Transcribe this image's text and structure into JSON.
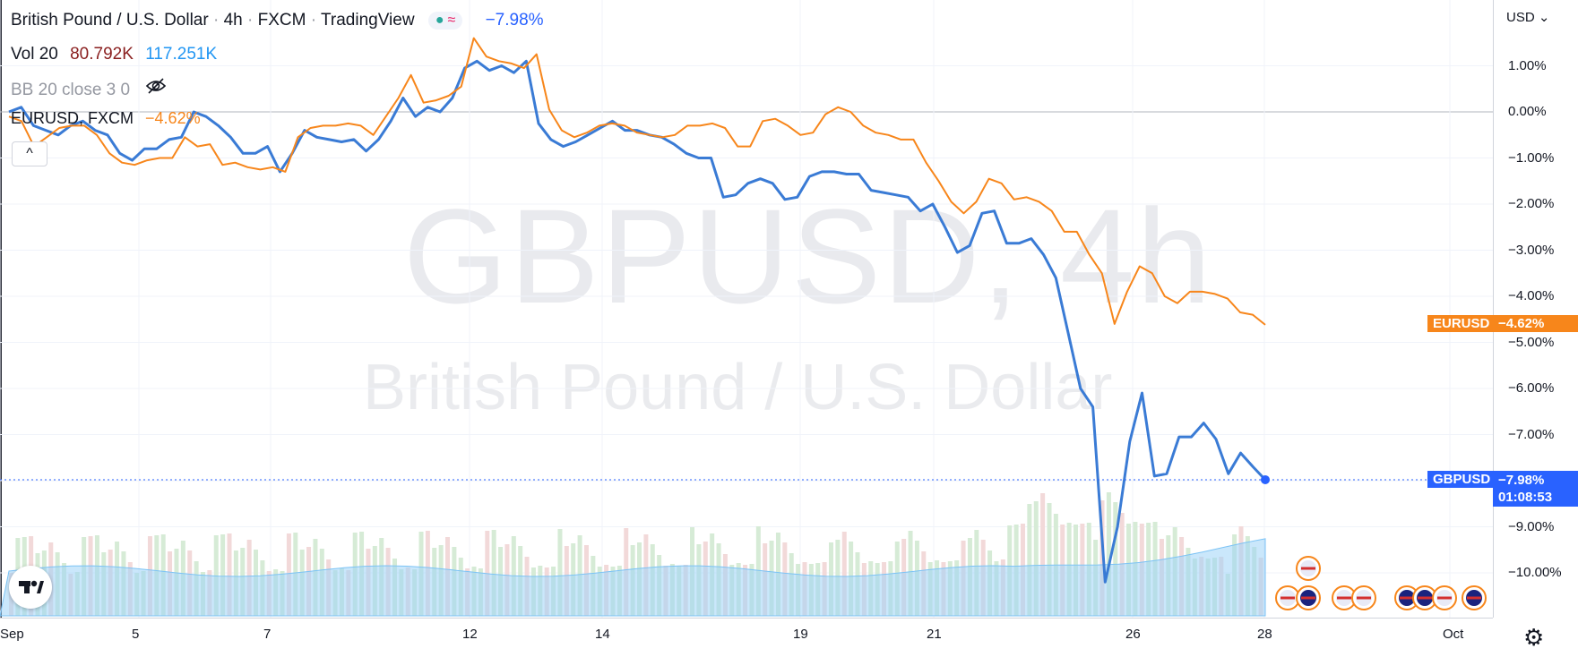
{
  "legend": {
    "title": "British Pound / U.S. Dollar",
    "timeframe": "4h",
    "exchange": "FXCM",
    "platform": "TradingView",
    "change": "−7.98%",
    "vol_label": "Vol 20",
    "vol_value1": "80.792K",
    "vol_value2": "117.251K",
    "bb_label": "BB 20 close 3 0",
    "compare_label": "EURUSD, FXCM",
    "compare_change": "−4.62%",
    "collapse_icon": "^"
  },
  "watermark": {
    "symbol": "GBPUSD, 4h",
    "description": "British Pound / U.S. Dollar"
  },
  "price_scale": {
    "currency": "USD",
    "eur_tag": "EURUSD",
    "eur_value": "−4.62%",
    "gbp_tag": "GBPUSD",
    "gbp_value": "−7.98%",
    "countdown": "01:08:53"
  },
  "colors": {
    "gbp": "#3a7bd5",
    "eur": "#f7861b",
    "volume_up": "#d6ebd6",
    "volume_down": "#f2d9d9",
    "volume_ma": "#9fd3f7"
  },
  "chart_data": {
    "type": "line",
    "x_ticks": [
      "Sep",
      "5",
      "7",
      "12",
      "14",
      "19",
      "21",
      "26",
      "28",
      "Oct"
    ],
    "y_ticks": [
      "1.00%",
      "0.00%",
      "−1.00%",
      "−2.00%",
      "−3.00%",
      "−4.00%",
      "−5.00%",
      "−6.00%",
      "−7.00%",
      "−8.00%",
      "−9.00%",
      "−10.00%"
    ],
    "ylim": [
      -11.0,
      2.3
    ],
    "y_unit": "%",
    "series": [
      {
        "name": "GBPUSD",
        "values": [
          0.0,
          0.1,
          -0.3,
          -0.4,
          -0.5,
          -0.3,
          -0.2,
          -0.4,
          -0.5,
          -0.9,
          -1.05,
          -0.8,
          -0.8,
          -0.6,
          -0.55,
          0.0,
          -0.1,
          -0.3,
          -0.55,
          -0.9,
          -0.9,
          -0.75,
          -1.3,
          -0.9,
          -0.4,
          -0.55,
          -0.6,
          -0.65,
          -0.6,
          -0.85,
          -0.6,
          -0.2,
          0.3,
          -0.1,
          0.1,
          0.0,
          0.3,
          0.95,
          1.1,
          0.9,
          1.0,
          0.85,
          1.1,
          -0.25,
          -0.6,
          -0.75,
          -0.65,
          -0.5,
          -0.35,
          -0.2,
          -0.4,
          -0.4,
          -0.5,
          -0.55,
          -0.7,
          -0.9,
          -1.0,
          -1.0,
          -1.85,
          -1.8,
          -1.55,
          -1.45,
          -1.55,
          -1.9,
          -1.85,
          -1.4,
          -1.3,
          -1.3,
          -1.35,
          -1.35,
          -1.7,
          -1.75,
          -1.8,
          -1.85,
          -2.15,
          -2.0,
          -2.5,
          -3.05,
          -2.9,
          -2.2,
          -2.15,
          -2.85,
          -2.85,
          -2.75,
          -3.1,
          -3.6,
          -4.8,
          -6.0,
          -6.4,
          -10.2,
          -9.0,
          -7.15,
          -6.1,
          -7.9,
          -7.85,
          -7.05,
          -7.05,
          -6.75,
          -7.1,
          -7.85,
          -7.4,
          -7.7,
          -7.98
        ]
      },
      {
        "name": "EURUSD",
        "values": [
          -0.1,
          -0.2,
          -0.75,
          -0.55,
          -0.35,
          -0.3,
          -0.3,
          -0.5,
          -0.9,
          -1.1,
          -1.15,
          -1.05,
          -1.0,
          -1.0,
          -0.55,
          -0.75,
          -0.7,
          -1.15,
          -1.1,
          -1.2,
          -1.25,
          -1.2,
          -1.3,
          -0.55,
          -0.35,
          -0.3,
          -0.3,
          -0.25,
          -0.3,
          -0.5,
          -0.1,
          0.3,
          0.8,
          0.2,
          0.25,
          0.35,
          0.55,
          1.6,
          1.2,
          1.1,
          1.05,
          0.95,
          1.25,
          0.05,
          -0.4,
          -0.55,
          -0.45,
          -0.3,
          -0.25,
          -0.3,
          -0.45,
          -0.5,
          -0.55,
          -0.5,
          -0.3,
          -0.3,
          -0.25,
          -0.35,
          -0.75,
          -0.75,
          -0.2,
          -0.15,
          -0.3,
          -0.5,
          -0.45,
          -0.05,
          0.1,
          0.0,
          -0.3,
          -0.45,
          -0.5,
          -0.6,
          -0.6,
          -1.1,
          -1.5,
          -1.95,
          -2.2,
          -1.95,
          -1.45,
          -1.55,
          -1.9,
          -1.85,
          -1.95,
          -2.15,
          -2.6,
          -2.6,
          -3.1,
          -3.5,
          -4.6,
          -3.9,
          -3.35,
          -3.5,
          -4.0,
          -4.15,
          -3.9,
          -3.9,
          -3.95,
          -4.05,
          -4.35,
          -4.4,
          -4.62
        ]
      }
    ]
  }
}
